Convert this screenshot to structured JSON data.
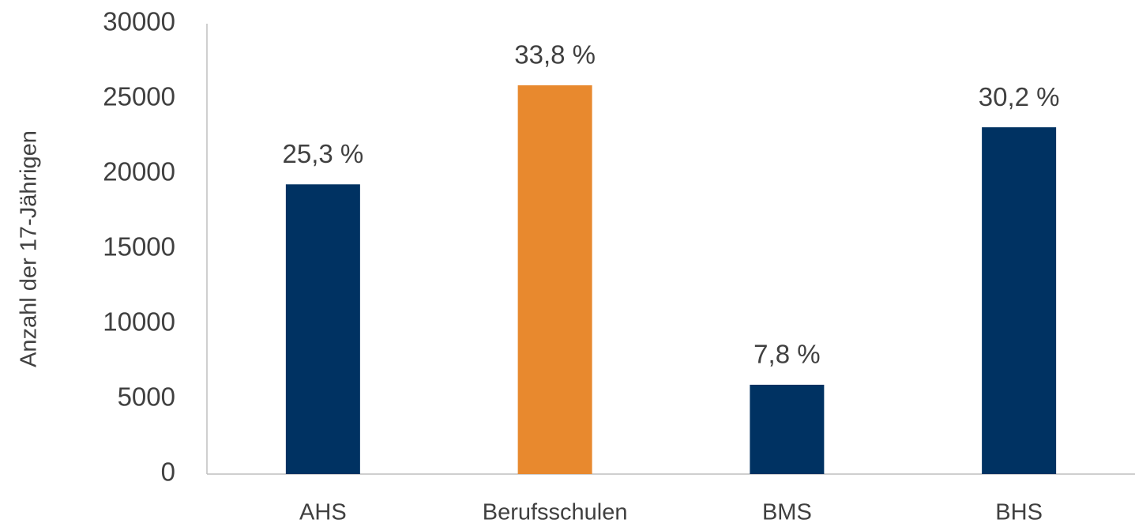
{
  "chart_data": {
    "type": "bar",
    "y_label": "Anzahl der 17-Jährigen",
    "categories": [
      "AHS",
      "Berufsschulen",
      "BMS",
      "BHS"
    ],
    "values": [
      19300,
      25900,
      5950,
      23100
    ],
    "colors": [
      "#003262",
      "#e8892e",
      "#003262",
      "#003262"
    ],
    "percent_labels": [
      "25,3 %",
      "33,8 %",
      "7,8 %",
      "30,2 %"
    ],
    "ylim": [
      0,
      30000
    ],
    "yticks": [
      0,
      5000,
      10000,
      15000,
      20000,
      25000,
      30000
    ],
    "grid": false
  }
}
